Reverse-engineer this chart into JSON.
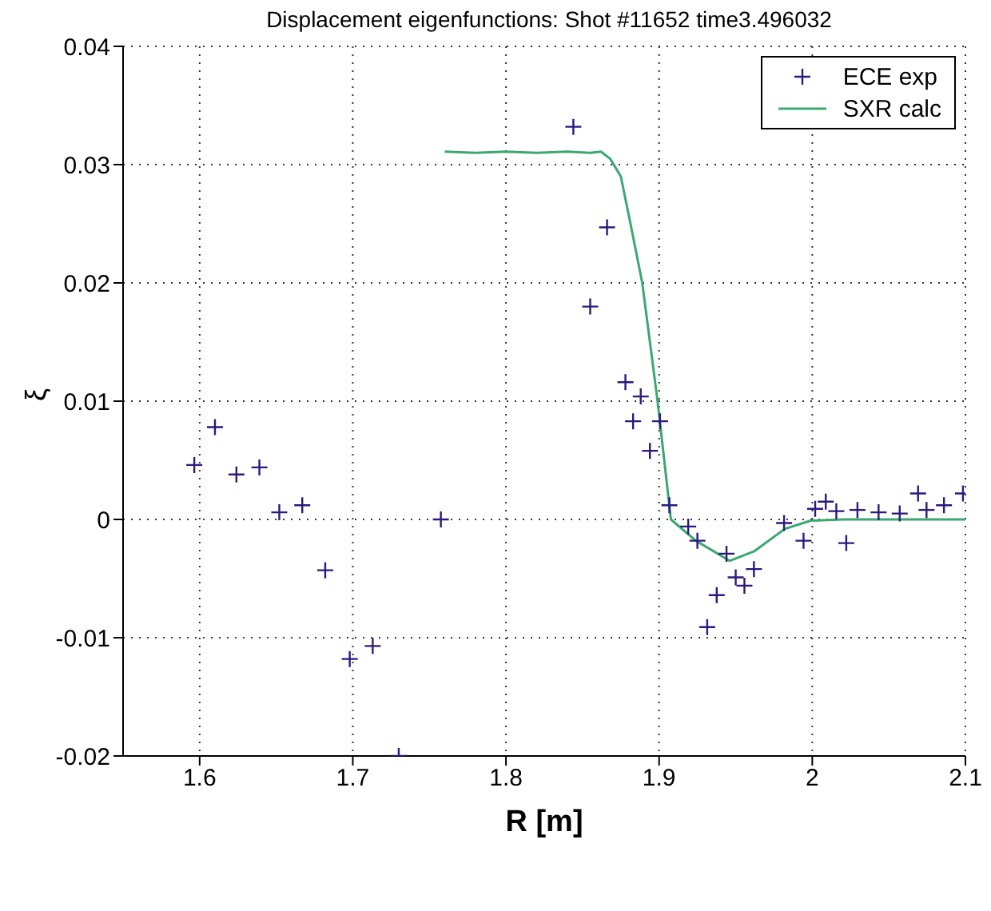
{
  "chart_data": {
    "type": "scatter",
    "title": "Displacement eigenfunctions: Shot #11652 time3.496032",
    "xlabel": "R [m]",
    "ylabel": "ξ",
    "xlim": [
      1.55,
      2.1
    ],
    "xticks": [
      1.6,
      1.7,
      1.8,
      1.9,
      2,
      2.1
    ],
    "ylim": [
      -0.02,
      0.04
    ],
    "yticks": [
      -0.02,
      -0.01,
      0,
      0.01,
      0.02,
      0.03,
      0.04
    ],
    "grid": true,
    "legend": "top right",
    "series": [
      {
        "name": "ECE exp",
        "marker": "cross",
        "color": "#2a1a7e",
        "x": [
          1.5965,
          1.61,
          1.624,
          1.639,
          1.652,
          1.667,
          1.682,
          1.698,
          1.713,
          1.73,
          1.7575,
          1.844,
          1.855,
          1.866,
          1.878,
          1.883,
          1.888,
          1.894,
          1.9006,
          1.9067,
          1.919,
          1.925,
          1.9314,
          1.9376,
          1.944,
          1.95,
          1.9557,
          1.9619,
          1.9816,
          1.9943,
          2.0019,
          2.0088,
          2.0157,
          2.0222,
          2.0295,
          2.0433,
          2.0571,
          2.0691,
          2.0746,
          2.086,
          2.0984
        ],
        "values": [
          0.0046,
          0.0078,
          0.0038,
          0.0044,
          0.0006,
          0.0012,
          -0.0043,
          -0.0118,
          -0.0107,
          -0.02,
          0.0,
          0.0332,
          0.018,
          0.0247,
          0.0116,
          0.0083,
          0.0104,
          0.0058,
          0.0083,
          0.0012,
          -0.0006,
          -0.0018,
          -0.0091,
          -0.0064,
          -0.0029,
          -0.0049,
          -0.0056,
          -0.0042,
          -0.0003,
          -0.0018,
          0.0009,
          0.0015,
          0.0007,
          -0.002,
          0.0008,
          0.0006,
          0.0005,
          0.0022,
          0.0008,
          0.0012,
          0.0022
        ]
      },
      {
        "name": "SXR calc",
        "type": "line",
        "color": "#3aa870",
        "x": [
          1.76,
          1.78,
          1.8,
          1.82,
          1.84,
          1.855,
          1.862,
          1.868,
          1.875,
          1.881,
          1.889,
          1.899,
          1.9077,
          1.924,
          1.946,
          1.962,
          1.982,
          1.999,
          2.02,
          2.05,
          2.1
        ],
        "values": [
          0.0311,
          0.031,
          0.0311,
          0.031,
          0.0311,
          0.031,
          0.0311,
          0.0305,
          0.029,
          0.0252,
          0.02,
          0.01,
          0,
          -0.0018,
          -0.0035,
          -0.0027,
          -0.0008,
          -0.0001,
          0,
          0,
          0
        ]
      }
    ]
  }
}
